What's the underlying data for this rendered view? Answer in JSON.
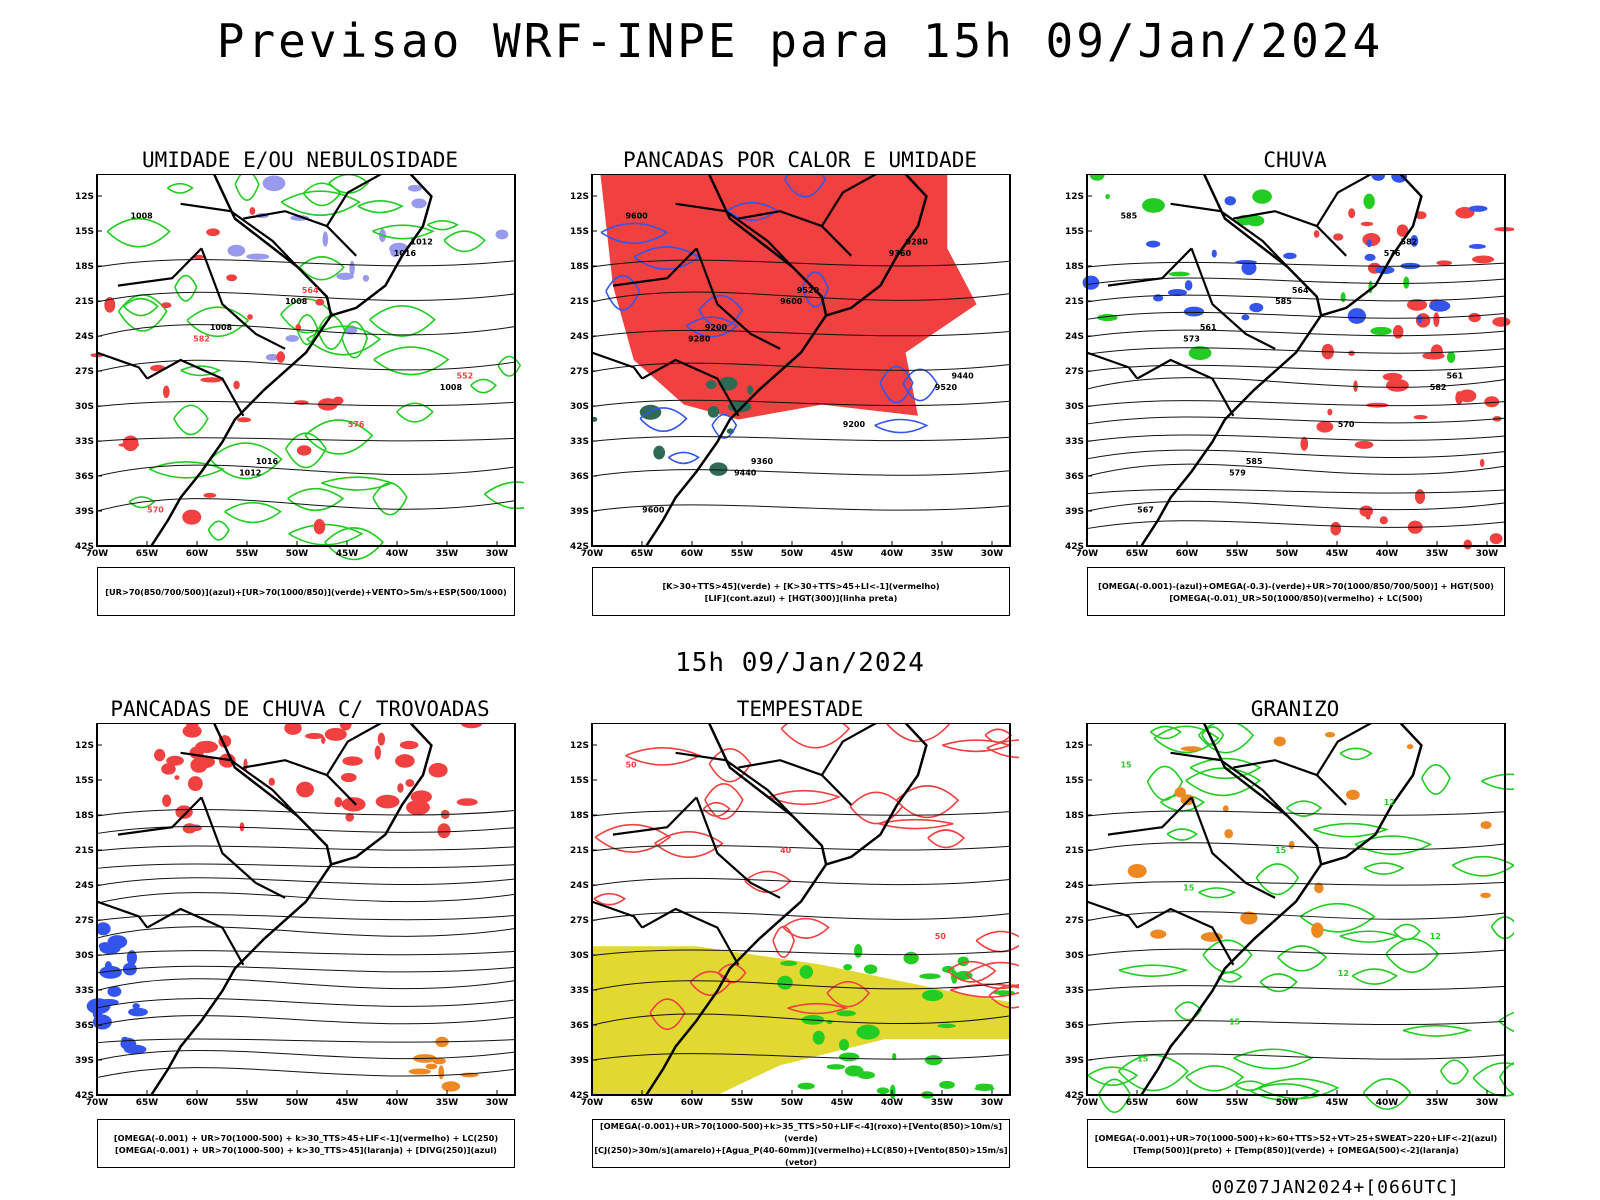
{
  "title": "Previsao WRF-INPE  para 15h 09/Jan/2024",
  "mid_title": "15h 09/Jan/2024",
  "footer": "00Z07JAN2024+[066UTC]",
  "lat_labels": [
    "12S",
    "15S",
    "18S",
    "21S",
    "24S",
    "27S",
    "30S",
    "33S",
    "36S",
    "39S",
    "42S"
  ],
  "lon_labels": [
    "70W",
    "65W",
    "60W",
    "55W",
    "50W",
    "45W",
    "40W",
    "35W",
    "30W"
  ],
  "panels": [
    {
      "title": "UMIDADE E/OU NEBULOSIDADE",
      "legend": [
        "[UR>70(850/700/500)](azul)+[UR>70(1000/850)](verde)+VENTO>5m/s+ESP(500/1000)"
      ],
      "contour_labels": [
        "1008",
        "1008",
        "1008",
        "1012",
        "1016",
        "582",
        "576",
        "570",
        "564",
        "552",
        "1016",
        "1012",
        "1008"
      ]
    },
    {
      "title": "PANCADAS POR CALOR E UMIDADE",
      "legend": [
        "[K>30+TTS>45](verde) + [K>30+TTS>45+LI<-1](vermelho)",
        "[LIF](cont.azul) + [HGT(300)](linha preta)"
      ],
      "contour_labels": [
        "9600",
        "9600",
        "9520",
        "9440",
        "9360",
        "9280",
        "9200",
        "9600",
        "9520",
        "9440",
        "9360",
        "9280",
        "9200"
      ]
    },
    {
      "title": "CHUVA",
      "legend": [
        "[OMEGA(-0.001)-(azul)+OMEGA(-0.3)-(verde)+UR>70(1000/850/700/500)] + HGT(500)",
        "[OMEGA(-0.01)_UR>50(1000/850)(vermelho) + LC(500)"
      ],
      "contour_labels": [
        "585",
        "585",
        "582",
        "579",
        "576",
        "573",
        "570",
        "567",
        "564",
        "561",
        "585",
        "582",
        "561"
      ]
    },
    {
      "title": "PANCADAS DE CHUVA C/ TROVOADAS",
      "legend": [
        "[OMEGA(-0.001) + UR>70(1000-500) + k>30_TTS>45+LIF<-1](vermelho) + LC(250)",
        "[OMEGA(-0.001) + UR>70(1000-500) + k>30_TTS>45](laranja) + [DIVG(250)](azul)"
      ],
      "contour_labels": []
    },
    {
      "title": "TEMPESTADE",
      "legend": [
        "[OMEGA(-0.001)+UR>70(1000-500)+k>35_TTS>50+LIF<-4](roxo)+[Vento(850)>10m/s](verde)",
        "[CJ(250)>30m/s](amarelo)+[Agua_P(40-60mm)](vermelho)+LC(850)+[Vento(850)>15m/s](vetor)"
      ],
      "contour_labels": [
        "50",
        "40",
        "50"
      ]
    },
    {
      "title": "GRANIZO",
      "legend": [
        "[OMEGA(-0.001)+UR>70(1000-500)+k>60+TTS>52+VT>25+SWEAT>220+LIF<-2](azul)",
        "[Temp(500)](preto) + [Temp(850)](verde) + [OMEGA(500)<-2](laranja)"
      ],
      "contour_labels": [
        "15",
        "15",
        "12",
        "15",
        "12",
        "15",
        "12",
        "15"
      ]
    }
  ],
  "colors": {
    "red": "#f04040",
    "green": "#22cc22",
    "blue": "#3355ee",
    "lavender": "#9999ee",
    "yellow": "#e2d832",
    "darkgreen": "#2f6a55",
    "orange": "#ee8822"
  }
}
